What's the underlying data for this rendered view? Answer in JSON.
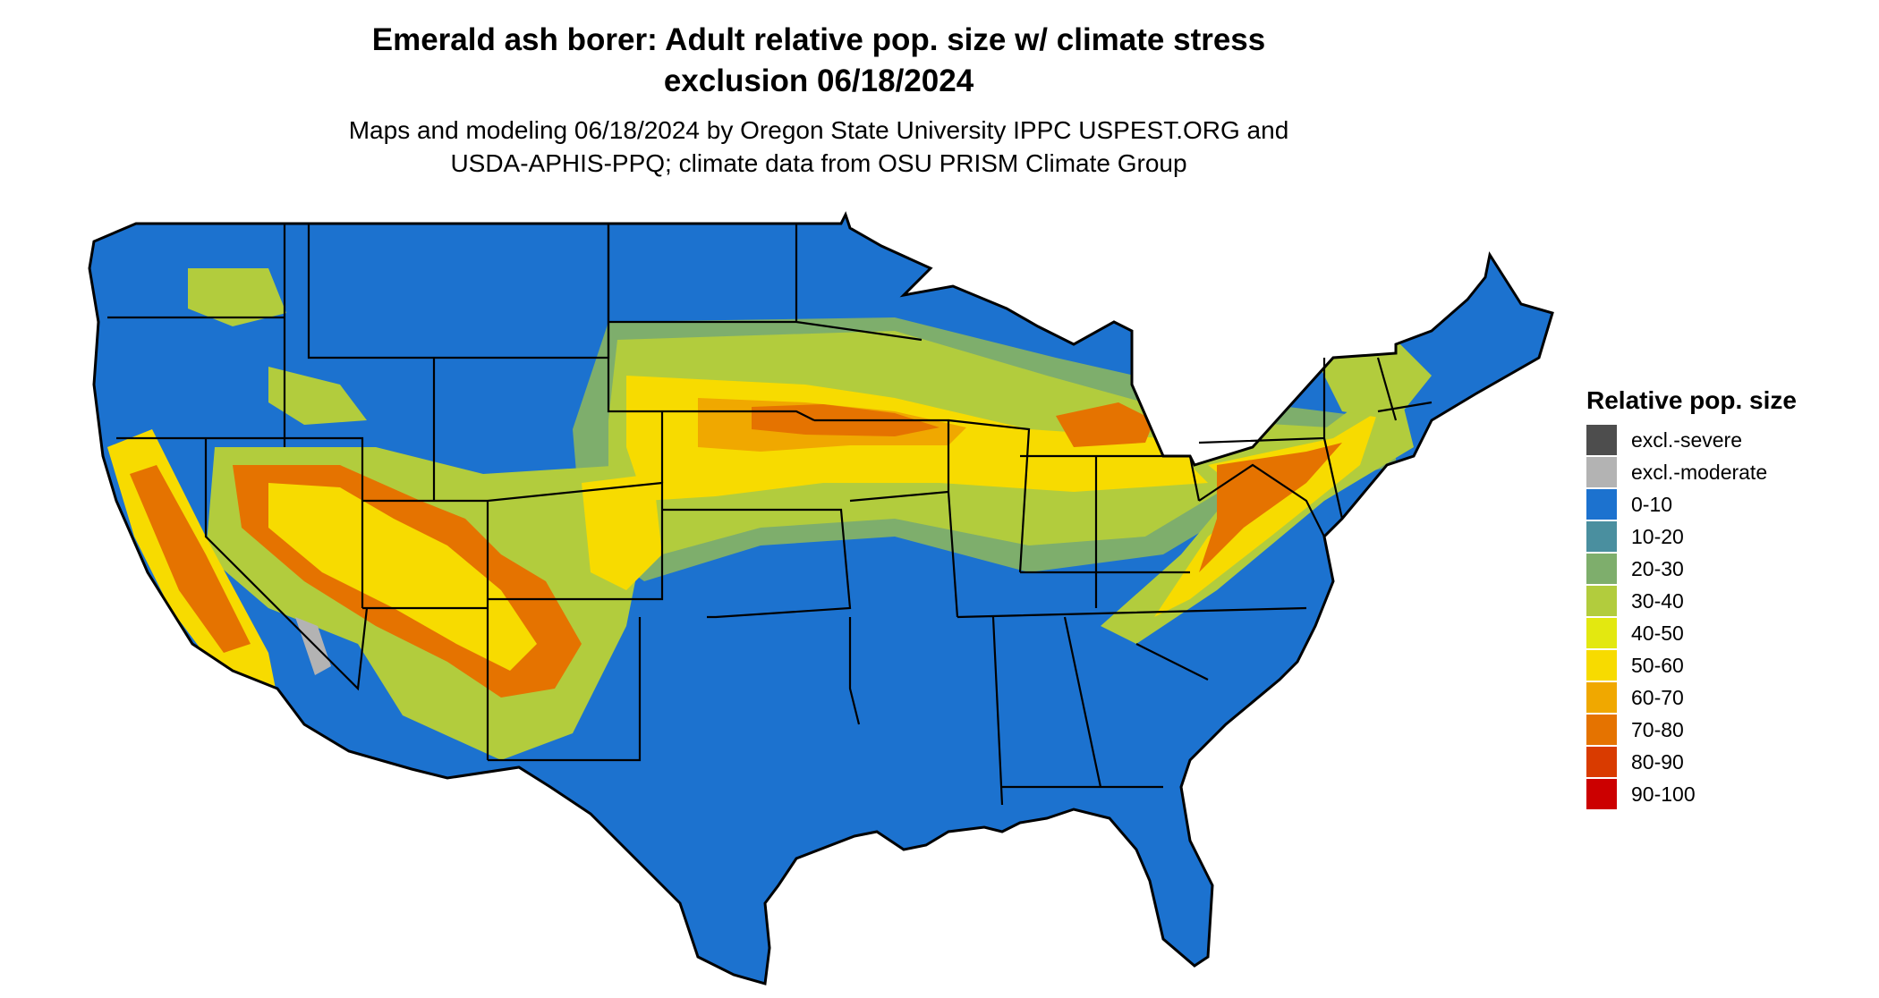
{
  "title": {
    "line1": "Emerald ash borer: Adult relative pop. size w/ climate stress",
    "line2": "exclusion 06/18/2024"
  },
  "subtitle": {
    "line1": "Maps and modeling 06/18/2024 by Oregon State University IPPC USPEST.ORG and",
    "line2": "USDA-APHIS-PPQ; climate data from OSU PRISM Climate Group"
  },
  "legend": {
    "title": "Relative pop. size",
    "items": [
      {
        "label": "excl.-severe",
        "color": "#4d4d4d"
      },
      {
        "label": "excl.-moderate",
        "color": "#b3b3b3"
      },
      {
        "label": "0-10",
        "color": "#1c72cf"
      },
      {
        "label": "10-20",
        "color": "#4a8f9f"
      },
      {
        "label": "20-30",
        "color": "#7eae6c"
      },
      {
        "label": "30-40",
        "color": "#b2cc3d"
      },
      {
        "label": "40-50",
        "color": "#e3e810"
      },
      {
        "label": "50-60",
        "color": "#f7db00"
      },
      {
        "label": "60-70",
        "color": "#f0a800"
      },
      {
        "label": "70-80",
        "color": "#e57300"
      },
      {
        "label": "80-90",
        "color": "#d93b00"
      },
      {
        "label": "90-100",
        "color": "#cc0000"
      }
    ]
  }
}
